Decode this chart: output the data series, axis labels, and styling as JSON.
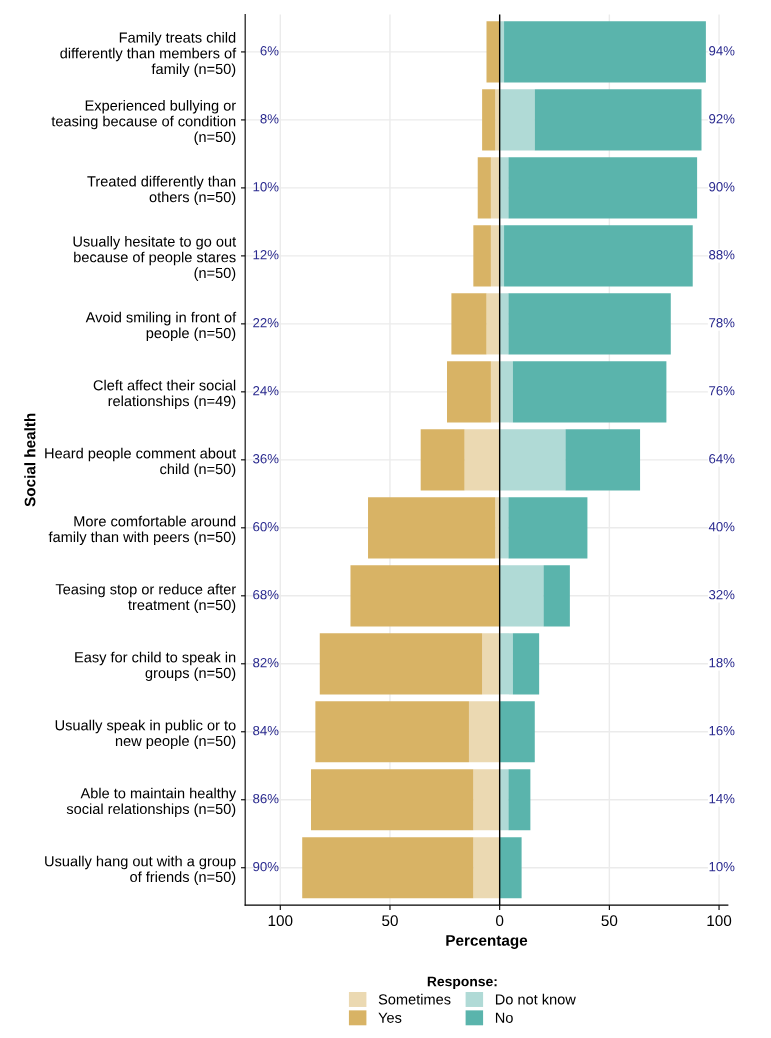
{
  "chart_data": {
    "type": "bar",
    "orientation": "horizontal",
    "stacked": true,
    "xlabel": "Percentage",
    "ylabel": "Social health",
    "legend_title": "Response:",
    "categories": [
      "Family treats child\ndifferently than members of\nfamily (n=50)",
      "Experienced bullying or\nteasing because of condition\n(n=50)",
      "Treated differently than\nothers (n=50)",
      "Usually hesitate to go out\nbecause of people stares\n(n=50)",
      "Avoid smiling in front of\npeople (n=50)",
      "Cleft affect their social\nrelationships (n=49)",
      "Heard people comment about\nchild (n=50)",
      "More comfortable around\nfamily than with peers (n=50)",
      "Teasing stop or reduce after\ntreatment (n=50)",
      "Easy for child to speak in\ngroups (n=50)",
      "Usually speak in public or to\nnew people (n=50)",
      "Able to maintain healthy\nsocial relationships (n=50)",
      "Usually hang out with a group\nof friends (n=50)"
    ],
    "series": [
      {
        "name": "Sometimes",
        "color": "#ebd9b2",
        "values": [
          0,
          -2,
          -4,
          -4,
          -6,
          -4,
          -16,
          -2,
          0,
          -8,
          -14,
          -12,
          -12
        ]
      },
      {
        "name": "Yes",
        "color": "#d8b365",
        "values": [
          -6,
          -6,
          -6,
          -8,
          -16,
          -20,
          -20,
          -58,
          -68,
          -74,
          -70,
          -74,
          -78
        ]
      },
      {
        "name": "Do not know",
        "color": "#b0dad6",
        "values": [
          2,
          16,
          4,
          2,
          4,
          6,
          30,
          4,
          20,
          6,
          0,
          4,
          0
        ]
      },
      {
        "name": "No",
        "color": "#5ab4ac",
        "values": [
          92,
          76,
          86,
          86,
          74,
          70,
          34,
          36,
          12,
          12,
          16,
          10,
          10
        ]
      }
    ],
    "annotations": [
      "6%",
      "8%",
      "10%",
      "12%",
      "22%",
      "24%",
      "36%",
      "60%",
      "68%",
      "82%",
      "84%",
      "86%",
      "90%",
      "94%",
      "92%",
      "90%",
      "88%",
      "78%",
      "76%",
      "64%",
      "40%",
      "32%",
      "18%",
      "16%",
      "14%",
      "10%"
    ],
    "xlim": [
      -116,
      104
    ],
    "xticks": [
      {
        "value": -100,
        "label": "100"
      },
      {
        "value": -50,
        "label": "50"
      },
      0,
      50,
      100
    ],
    "ref_lines": [
      {
        "axis": "x",
        "value": 0,
        "color": "#000000",
        "line_style": "solid"
      }
    ],
    "grid": true,
    "legend": "bottom"
  }
}
